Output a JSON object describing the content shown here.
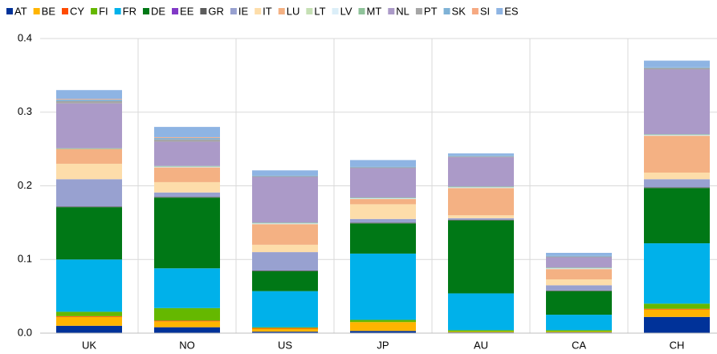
{
  "chart_data": {
    "type": "stacked_bar",
    "categories": [
      "UK",
      "NO",
      "US",
      "JP",
      "AU",
      "CA",
      "CH"
    ],
    "series": [
      {
        "name": "AT",
        "color": "#003299",
        "values": [
          0.01,
          0.008,
          0.002,
          0.003,
          0.001,
          0.001,
          0.022
        ]
      },
      {
        "name": "BE",
        "color": "#ffb400",
        "values": [
          0.012,
          0.008,
          0.004,
          0.012,
          0.001,
          0.001,
          0.01
        ]
      },
      {
        "name": "CY",
        "color": "#ff4b00",
        "values": [
          0.001,
          0.001,
          0.001,
          0,
          0,
          0,
          0.001
        ]
      },
      {
        "name": "FI",
        "color": "#65b800",
        "values": [
          0.006,
          0.017,
          0.001,
          0.003,
          0.002,
          0.002,
          0.007
        ]
      },
      {
        "name": "FR",
        "color": "#00b1ea",
        "values": [
          0.071,
          0.054,
          0.049,
          0.09,
          0.05,
          0.021,
          0.082
        ]
      },
      {
        "name": "DE",
        "color": "#007816",
        "values": [
          0.071,
          0.096,
          0.027,
          0.041,
          0.099,
          0.032,
          0.075
        ]
      },
      {
        "name": "EE",
        "color": "#8139c6",
        "values": [
          0,
          0,
          0,
          0,
          0,
          0,
          0
        ]
      },
      {
        "name": "GR",
        "color": "#5c5c5c",
        "values": [
          0.001,
          0.001,
          0.001,
          0.001,
          0.001,
          0.001,
          0.001
        ]
      },
      {
        "name": "IE",
        "color": "#98a1d0",
        "values": [
          0.037,
          0.006,
          0.025,
          0.005,
          0.002,
          0.007,
          0.011
        ]
      },
      {
        "name": "IT",
        "color": "#fdddaa",
        "values": [
          0.021,
          0.014,
          0.01,
          0.02,
          0.004,
          0.008,
          0.009
        ]
      },
      {
        "name": "LU",
        "color": "#f4b183",
        "values": [
          0.02,
          0.02,
          0.028,
          0.007,
          0.037,
          0.014,
          0.05
        ]
      },
      {
        "name": "LT",
        "color": "#c5e0b4",
        "values": [
          0,
          0,
          0,
          0,
          0,
          0,
          0
        ]
      },
      {
        "name": "LV",
        "color": "#dbeef8",
        "values": [
          0,
          0.001,
          0.001,
          0.001,
          0.001,
          0.001,
          0.001
        ]
      },
      {
        "name": "MT",
        "color": "#8fc39a",
        "values": [
          0.001,
          0.001,
          0.001,
          0.001,
          0.001,
          0.001,
          0.001
        ]
      },
      {
        "name": "NL",
        "color": "#ab9ac8",
        "values": [
          0.061,
          0.033,
          0.062,
          0.04,
          0.04,
          0.014,
          0.088
        ]
      },
      {
        "name": "PT",
        "color": "#a5a5a5",
        "values": [
          0.003,
          0.003,
          0.001,
          0.001,
          0.001,
          0.001,
          0.002
        ]
      },
      {
        "name": "SK",
        "color": "#7fb2d6",
        "values": [
          0.002,
          0.002,
          0.001,
          0.001,
          0.001,
          0.001,
          0.001
        ]
      },
      {
        "name": "SI",
        "color": "#f6a982",
        "values": [
          0.001,
          0.001,
          0,
          0,
          0,
          0,
          0
        ]
      },
      {
        "name": "ES",
        "color": "#8eb4e3",
        "values": [
          0.012,
          0.014,
          0.007,
          0.009,
          0.003,
          0.004,
          0.009
        ]
      }
    ],
    "ylim": [
      0,
      0.4
    ],
    "yticks": [
      {
        "value": 0,
        "label": "0.0"
      },
      0.1,
      0.2,
      0.3,
      0.4
    ],
    "grid": true
  }
}
